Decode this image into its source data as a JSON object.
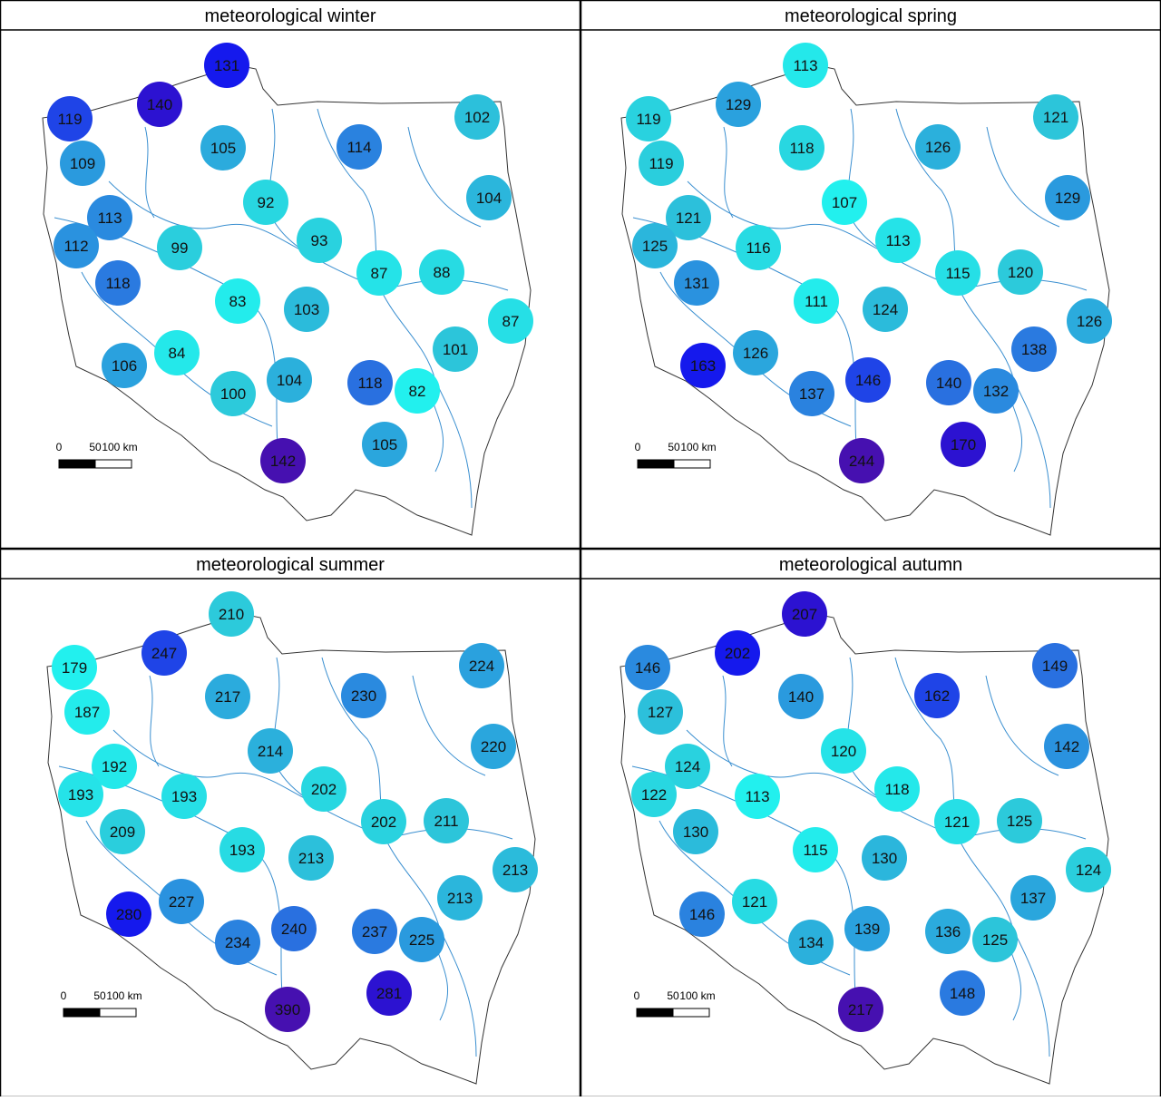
{
  "panels": [
    {
      "title": "meteorological winter",
      "scale_bar": [
        "0",
        "50",
        "100 km"
      ],
      "values": [
        131,
        140,
        119,
        109,
        105,
        114,
        102,
        104,
        92,
        113,
        112,
        99,
        93,
        87,
        88,
        118,
        83,
        103,
        87,
        101,
        84,
        106,
        100,
        104,
        118,
        82,
        105,
        142
      ]
    },
    {
      "title": "meteorological spring",
      "scale_bar": [
        "0",
        "50",
        "100 km"
      ],
      "values": [
        113,
        129,
        119,
        119,
        118,
        126,
        121,
        129,
        107,
        121,
        125,
        116,
        113,
        115,
        120,
        131,
        111,
        124,
        126,
        138,
        126,
        163,
        137,
        146,
        140,
        132,
        170,
        244
      ]
    },
    {
      "title": "meteorological summer",
      "scale_bar": [
        "0",
        "50",
        "100 km"
      ],
      "values": [
        210,
        247,
        179,
        187,
        217,
        230,
        224,
        220,
        214,
        192,
        193,
        193,
        202,
        202,
        211,
        209,
        193,
        213,
        213,
        213,
        227,
        280,
        234,
        240,
        237,
        225,
        281,
        390
      ]
    },
    {
      "title": "meteorological autumn",
      "scale_bar": [
        "0",
        "50",
        "100 km"
      ],
      "values": [
        207,
        202,
        146,
        127,
        140,
        162,
        149,
        142,
        120,
        124,
        122,
        113,
        118,
        121,
        125,
        130,
        115,
        130,
        124,
        137,
        121,
        146,
        134,
        139,
        136,
        125,
        148,
        217
      ]
    }
  ]
}
